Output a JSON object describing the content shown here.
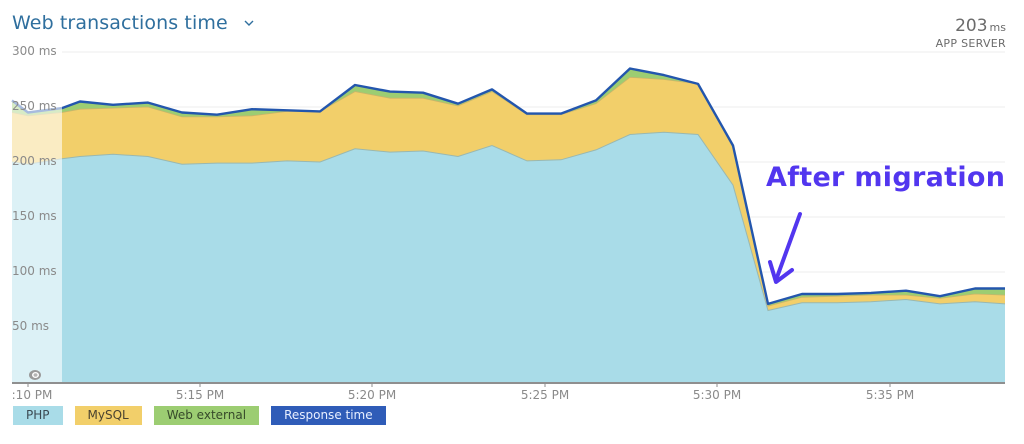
{
  "header": {
    "title": "Web transactions time",
    "dropdown_icon": "chevron-down-icon"
  },
  "summary": {
    "value": "203",
    "unit": "ms",
    "label": "APP SERVER"
  },
  "annotation": {
    "text": "After migration",
    "arrow_icon": "arrow-down-left-icon",
    "color": "#5236ef"
  },
  "legend": [
    {
      "label": "PHP",
      "color": "#a9dce8"
    },
    {
      "label": "MySQL",
      "color": "#f2cf6a"
    },
    {
      "label": "Web external",
      "color": "#9ccd72"
    },
    {
      "label": "Response time",
      "color": "#2f5cb8"
    }
  ],
  "colors": {
    "php": "#a9dce8",
    "mysql": "#f2cf6a",
    "web_external": "#9ccd72",
    "response_line": "#2356ad",
    "grid": "#ececec",
    "axis": "#8f8f8f",
    "faded_overlay": "rgba(255,255,255,0.6)"
  },
  "chart_data": {
    "type": "area",
    "title": "Web transactions time",
    "stacked": true,
    "xlabel": "",
    "ylabel": "",
    "ylim": [
      0,
      300
    ],
    "y_ticks": [
      "300 ms",
      "250 ms",
      "200 ms",
      "150 ms",
      "100 ms",
      "50 ms"
    ],
    "x_ticks": [
      ":10 PM",
      "5:15 PM",
      "5:20 PM",
      "5:25 PM",
      "5:30 PM",
      "5:35 PM"
    ],
    "grid": true,
    "legend_position": "bottom-left",
    "x": [
      "5:09",
      "5:10",
      "5:11",
      "5:11.5",
      "5:12.5",
      "5:13.5",
      "5:14.5",
      "5:15.5",
      "5:16.5",
      "5:17.5",
      "5:18.5",
      "5:19.5",
      "5:20.5",
      "5:21.5",
      "5:22.5",
      "5:23.5",
      "5:24.5",
      "5:25.5",
      "5:26.5",
      "5:27.5",
      "5:28.5",
      "5:29.5",
      "5:30.5",
      "5:31.5",
      "5:32.5",
      "5:33.5",
      "5:34.5",
      "5:35.5",
      "5:36.5",
      "5:37.5",
      "5:38.5"
    ],
    "series": [
      {
        "name": "PHP",
        "values": [
          200,
          198,
          203,
          205,
          207,
          205,
          198,
          199,
          199,
          201,
          200,
          212,
          209,
          210,
          205,
          215,
          201,
          202,
          211,
          225,
          227,
          225,
          179,
          65,
          72,
          72,
          73,
          75,
          71,
          73,
          71
        ]
      },
      {
        "name": "MySQL",
        "values": [
          45,
          44,
          42,
          43,
          42,
          45,
          43,
          42,
          43,
          45,
          46,
          52,
          49,
          48,
          46,
          49,
          42,
          41,
          42,
          52,
          48,
          46,
          34,
          4,
          5,
          6,
          6,
          4,
          5,
          7,
          8
        ]
      },
      {
        "name": "Web external",
        "values": [
          5,
          3,
          4,
          7,
          3,
          4,
          4,
          2,
          6,
          1,
          0,
          6,
          6,
          5,
          2,
          2,
          1,
          1,
          3,
          8,
          4,
          0,
          2,
          2,
          3,
          2,
          2,
          4,
          2,
          5,
          6
        ]
      },
      {
        "name": "Response time",
        "values": [
          256,
          245,
          249,
          255,
          252,
          254,
          245,
          243,
          248,
          247,
          246,
          270,
          264,
          263,
          253,
          266,
          244,
          244,
          256,
          285,
          279,
          271,
          215,
          71,
          80,
          80,
          81,
          83,
          78,
          85,
          85
        ]
      }
    ],
    "annotations": [
      {
        "text": "After migration",
        "points_to": "5:31.5",
        "value": 71
      }
    ],
    "summary": {
      "value": 203,
      "unit": "ms",
      "label": "APP SERVER"
    }
  }
}
